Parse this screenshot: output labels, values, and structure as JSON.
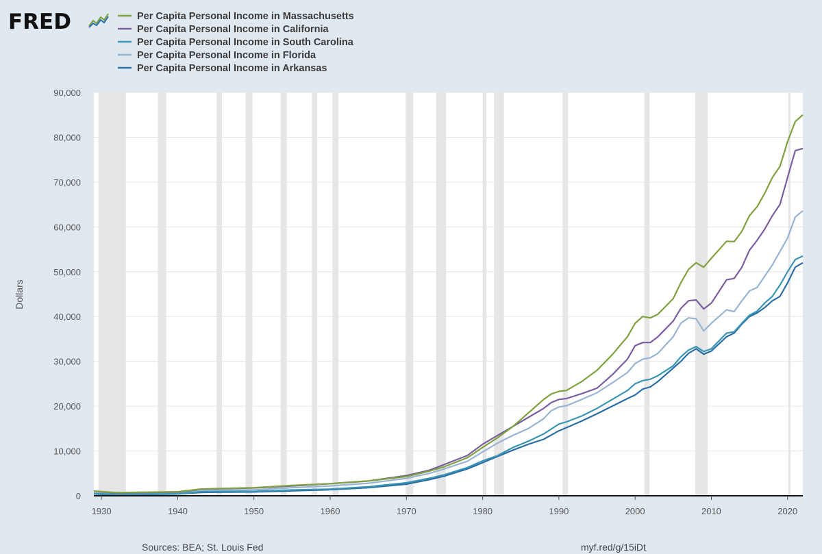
{
  "brand": {
    "logo_text": "FRED",
    "logo_icon": "line-graph-icon"
  },
  "footer": {
    "sources": "Sources: BEA; St. Louis Fed",
    "link": "myf.red/g/15iDt"
  },
  "chart_data": {
    "type": "line",
    "title": "",
    "xlabel": "",
    "ylabel": "Dollars",
    "xlim": [
      1929,
      2022
    ],
    "ylim": [
      0,
      90000
    ],
    "y_ticks": [
      0,
      10000,
      20000,
      30000,
      40000,
      50000,
      60000,
      70000,
      80000,
      90000
    ],
    "y_tick_labels": [
      "0",
      "10,000",
      "20,000",
      "30,000",
      "40,000",
      "50,000",
      "60,000",
      "70,000",
      "80,000",
      "90,000"
    ],
    "x_ticks": [
      1930,
      1940,
      1950,
      1960,
      1970,
      1980,
      1990,
      2000,
      2010,
      2020
    ],
    "x_tick_labels": [
      "1930",
      "1940",
      "1950",
      "1960",
      "1970",
      "1980",
      "1990",
      "2000",
      "2010",
      "2020"
    ],
    "grid": true,
    "legend_position": "top-left",
    "recessions": [
      [
        1929.6,
        1933.2
      ],
      [
        1937.4,
        1938.5
      ],
      [
        1945.1,
        1945.8
      ],
      [
        1948.9,
        1949.8
      ],
      [
        1953.5,
        1954.3
      ],
      [
        1957.6,
        1958.3
      ],
      [
        1960.3,
        1961.1
      ],
      [
        1969.9,
        1970.9
      ],
      [
        1973.9,
        1975.2
      ],
      [
        1980.0,
        1980.5
      ],
      [
        1981.5,
        1982.8
      ],
      [
        1990.5,
        1991.2
      ],
      [
        2001.2,
        2001.9
      ],
      [
        2007.9,
        2009.5
      ],
      [
        2020.1,
        2020.4
      ]
    ],
    "series": [
      {
        "name": "Per Capita Personal Income in Massachusetts",
        "color": "#7fa13f",
        "points": [
          [
            1929,
            1050
          ],
          [
            1932,
            700
          ],
          [
            1935,
            780
          ],
          [
            1940,
            900
          ],
          [
            1943,
            1500
          ],
          [
            1945,
            1600
          ],
          [
            1950,
            1800
          ],
          [
            1955,
            2300
          ],
          [
            1960,
            2700
          ],
          [
            1965,
            3300
          ],
          [
            1970,
            4300
          ],
          [
            1973,
            5500
          ],
          [
            1975,
            6500
          ],
          [
            1978,
            8500
          ],
          [
            1980,
            10800
          ],
          [
            1982,
            13000
          ],
          [
            1984,
            15500
          ],
          [
            1986,
            18500
          ],
          [
            1988,
            21500
          ],
          [
            1989,
            22700
          ],
          [
            1990,
            23300
          ],
          [
            1991,
            23500
          ],
          [
            1993,
            25500
          ],
          [
            1995,
            28000
          ],
          [
            1997,
            31500
          ],
          [
            1999,
            35500
          ],
          [
            2000,
            38500
          ],
          [
            2001,
            40000
          ],
          [
            2002,
            39700
          ],
          [
            2003,
            40500
          ],
          [
            2005,
            44000
          ],
          [
            2006,
            47500
          ],
          [
            2007,
            50500
          ],
          [
            2008,
            52000
          ],
          [
            2009,
            51000
          ],
          [
            2010,
            53000
          ],
          [
            2012,
            56800
          ],
          [
            2013,
            56700
          ],
          [
            2014,
            59000
          ],
          [
            2015,
            62500
          ],
          [
            2016,
            64500
          ],
          [
            2017,
            67500
          ],
          [
            2018,
            71000
          ],
          [
            2019,
            73500
          ],
          [
            2020,
            79000
          ],
          [
            2021,
            83500
          ],
          [
            2022,
            85000
          ]
        ]
      },
      {
        "name": "Per Capita Personal Income in California",
        "color": "#7b5e9f",
        "points": [
          [
            1929,
            1000
          ],
          [
            1932,
            620
          ],
          [
            1935,
            700
          ],
          [
            1940,
            820
          ],
          [
            1943,
            1450
          ],
          [
            1945,
            1550
          ],
          [
            1950,
            1750
          ],
          [
            1955,
            2200
          ],
          [
            1960,
            2700
          ],
          [
            1965,
            3300
          ],
          [
            1970,
            4500
          ],
          [
            1973,
            5700
          ],
          [
            1975,
            7000
          ],
          [
            1978,
            9000
          ],
          [
            1980,
            11500
          ],
          [
            1982,
            13500
          ],
          [
            1984,
            15500
          ],
          [
            1986,
            17500
          ],
          [
            1988,
            19500
          ],
          [
            1989,
            20800
          ],
          [
            1990,
            21500
          ],
          [
            1991,
            21700
          ],
          [
            1993,
            22800
          ],
          [
            1995,
            24000
          ],
          [
            1997,
            27000
          ],
          [
            1999,
            30500
          ],
          [
            2000,
            33500
          ],
          [
            2001,
            34200
          ],
          [
            2002,
            34200
          ],
          [
            2003,
            35500
          ],
          [
            2005,
            39000
          ],
          [
            2006,
            41800
          ],
          [
            2007,
            43500
          ],
          [
            2008,
            43700
          ],
          [
            2009,
            41700
          ],
          [
            2010,
            43000
          ],
          [
            2012,
            48200
          ],
          [
            2013,
            48500
          ],
          [
            2014,
            51000
          ],
          [
            2015,
            54800
          ],
          [
            2016,
            57000
          ],
          [
            2017,
            59500
          ],
          [
            2018,
            62500
          ],
          [
            2019,
            65000
          ],
          [
            2020,
            71000
          ],
          [
            2021,
            77000
          ],
          [
            2022,
            77500
          ]
        ]
      },
      {
        "name": "Per Capita Personal Income in South Carolina",
        "color": "#3895b4",
        "points": [
          [
            1929,
            500
          ],
          [
            1932,
            300
          ],
          [
            1935,
            330
          ],
          [
            1940,
            450
          ],
          [
            1943,
            900
          ],
          [
            1945,
            950
          ],
          [
            1950,
            1000
          ],
          [
            1955,
            1300
          ],
          [
            1960,
            1500
          ],
          [
            1965,
            2000
          ],
          [
            1970,
            2900
          ],
          [
            1973,
            3900
          ],
          [
            1975,
            4700
          ],
          [
            1978,
            6300
          ],
          [
            1980,
            7800
          ],
          [
            1982,
            9000
          ],
          [
            1984,
            10800
          ],
          [
            1986,
            12200
          ],
          [
            1988,
            13800
          ],
          [
            1990,
            16000
          ],
          [
            1991,
            16500
          ],
          [
            1993,
            17800
          ],
          [
            1995,
            19500
          ],
          [
            1997,
            21500
          ],
          [
            1999,
            23500
          ],
          [
            2000,
            25000
          ],
          [
            2001,
            25700
          ],
          [
            2002,
            26000
          ],
          [
            2003,
            26800
          ],
          [
            2005,
            29000
          ],
          [
            2006,
            31000
          ],
          [
            2007,
            32500
          ],
          [
            2008,
            33300
          ],
          [
            2009,
            32200
          ],
          [
            2010,
            32800
          ],
          [
            2012,
            36300
          ],
          [
            2013,
            36600
          ],
          [
            2014,
            38500
          ],
          [
            2015,
            40300
          ],
          [
            2016,
            41200
          ],
          [
            2017,
            43000
          ],
          [
            2018,
            44500
          ],
          [
            2019,
            47000
          ],
          [
            2020,
            50000
          ],
          [
            2021,
            52700
          ],
          [
            2022,
            53500
          ]
        ]
      },
      {
        "name": "Per Capita Personal Income in Florida",
        "color": "#98b4d4",
        "points": [
          [
            1929,
            600
          ],
          [
            1932,
            400
          ],
          [
            1935,
            480
          ],
          [
            1940,
            650
          ],
          [
            1943,
            1100
          ],
          [
            1945,
            1200
          ],
          [
            1950,
            1350
          ],
          [
            1955,
            1800
          ],
          [
            1960,
            2200
          ],
          [
            1965,
            2800
          ],
          [
            1970,
            3900
          ],
          [
            1973,
            5000
          ],
          [
            1975,
            6000
          ],
          [
            1978,
            7700
          ],
          [
            1980,
            9800
          ],
          [
            1982,
            11800
          ],
          [
            1984,
            13500
          ],
          [
            1986,
            15000
          ],
          [
            1988,
            17200
          ],
          [
            1989,
            19000
          ],
          [
            1990,
            19800
          ],
          [
            1991,
            20100
          ],
          [
            1993,
            21500
          ],
          [
            1995,
            23000
          ],
          [
            1997,
            25200
          ],
          [
            1999,
            27500
          ],
          [
            2000,
            29500
          ],
          [
            2001,
            30500
          ],
          [
            2002,
            30800
          ],
          [
            2003,
            31800
          ],
          [
            2005,
            35500
          ],
          [
            2006,
            38500
          ],
          [
            2007,
            39700
          ],
          [
            2008,
            39500
          ],
          [
            2009,
            36800
          ],
          [
            2010,
            38500
          ],
          [
            2012,
            41500
          ],
          [
            2013,
            41100
          ],
          [
            2014,
            43500
          ],
          [
            2015,
            45700
          ],
          [
            2016,
            46500
          ],
          [
            2017,
            49000
          ],
          [
            2018,
            51500
          ],
          [
            2019,
            54500
          ],
          [
            2020,
            57500
          ],
          [
            2021,
            62200
          ],
          [
            2022,
            63600
          ]
        ]
      },
      {
        "name": "Per Capita Personal Income in Arkansas",
        "color": "#2b6da5",
        "points": [
          [
            1929,
            400
          ],
          [
            1932,
            250
          ],
          [
            1935,
            270
          ],
          [
            1940,
            400
          ],
          [
            1943,
            750
          ],
          [
            1945,
            800
          ],
          [
            1950,
            850
          ],
          [
            1955,
            1100
          ],
          [
            1960,
            1350
          ],
          [
            1965,
            1800
          ],
          [
            1970,
            2600
          ],
          [
            1973,
            3600
          ],
          [
            1975,
            4400
          ],
          [
            1978,
            6000
          ],
          [
            1980,
            7400
          ],
          [
            1982,
            8800
          ],
          [
            1984,
            10200
          ],
          [
            1986,
            11500
          ],
          [
            1988,
            12600
          ],
          [
            1990,
            14500
          ],
          [
            1991,
            15200
          ],
          [
            1993,
            16700
          ],
          [
            1995,
            18300
          ],
          [
            1997,
            20000
          ],
          [
            1999,
            21700
          ],
          [
            2000,
            22500
          ],
          [
            2001,
            23800
          ],
          [
            2002,
            24300
          ],
          [
            2003,
            25500
          ],
          [
            2005,
            28500
          ],
          [
            2006,
            30000
          ],
          [
            2007,
            31800
          ],
          [
            2008,
            32800
          ],
          [
            2009,
            31600
          ],
          [
            2010,
            32300
          ],
          [
            2012,
            35500
          ],
          [
            2013,
            36300
          ],
          [
            2014,
            38300
          ],
          [
            2015,
            40000
          ],
          [
            2016,
            40800
          ],
          [
            2017,
            42000
          ],
          [
            2018,
            43500
          ],
          [
            2019,
            44500
          ],
          [
            2020,
            47500
          ],
          [
            2021,
            51000
          ],
          [
            2022,
            52000
          ]
        ]
      }
    ]
  }
}
